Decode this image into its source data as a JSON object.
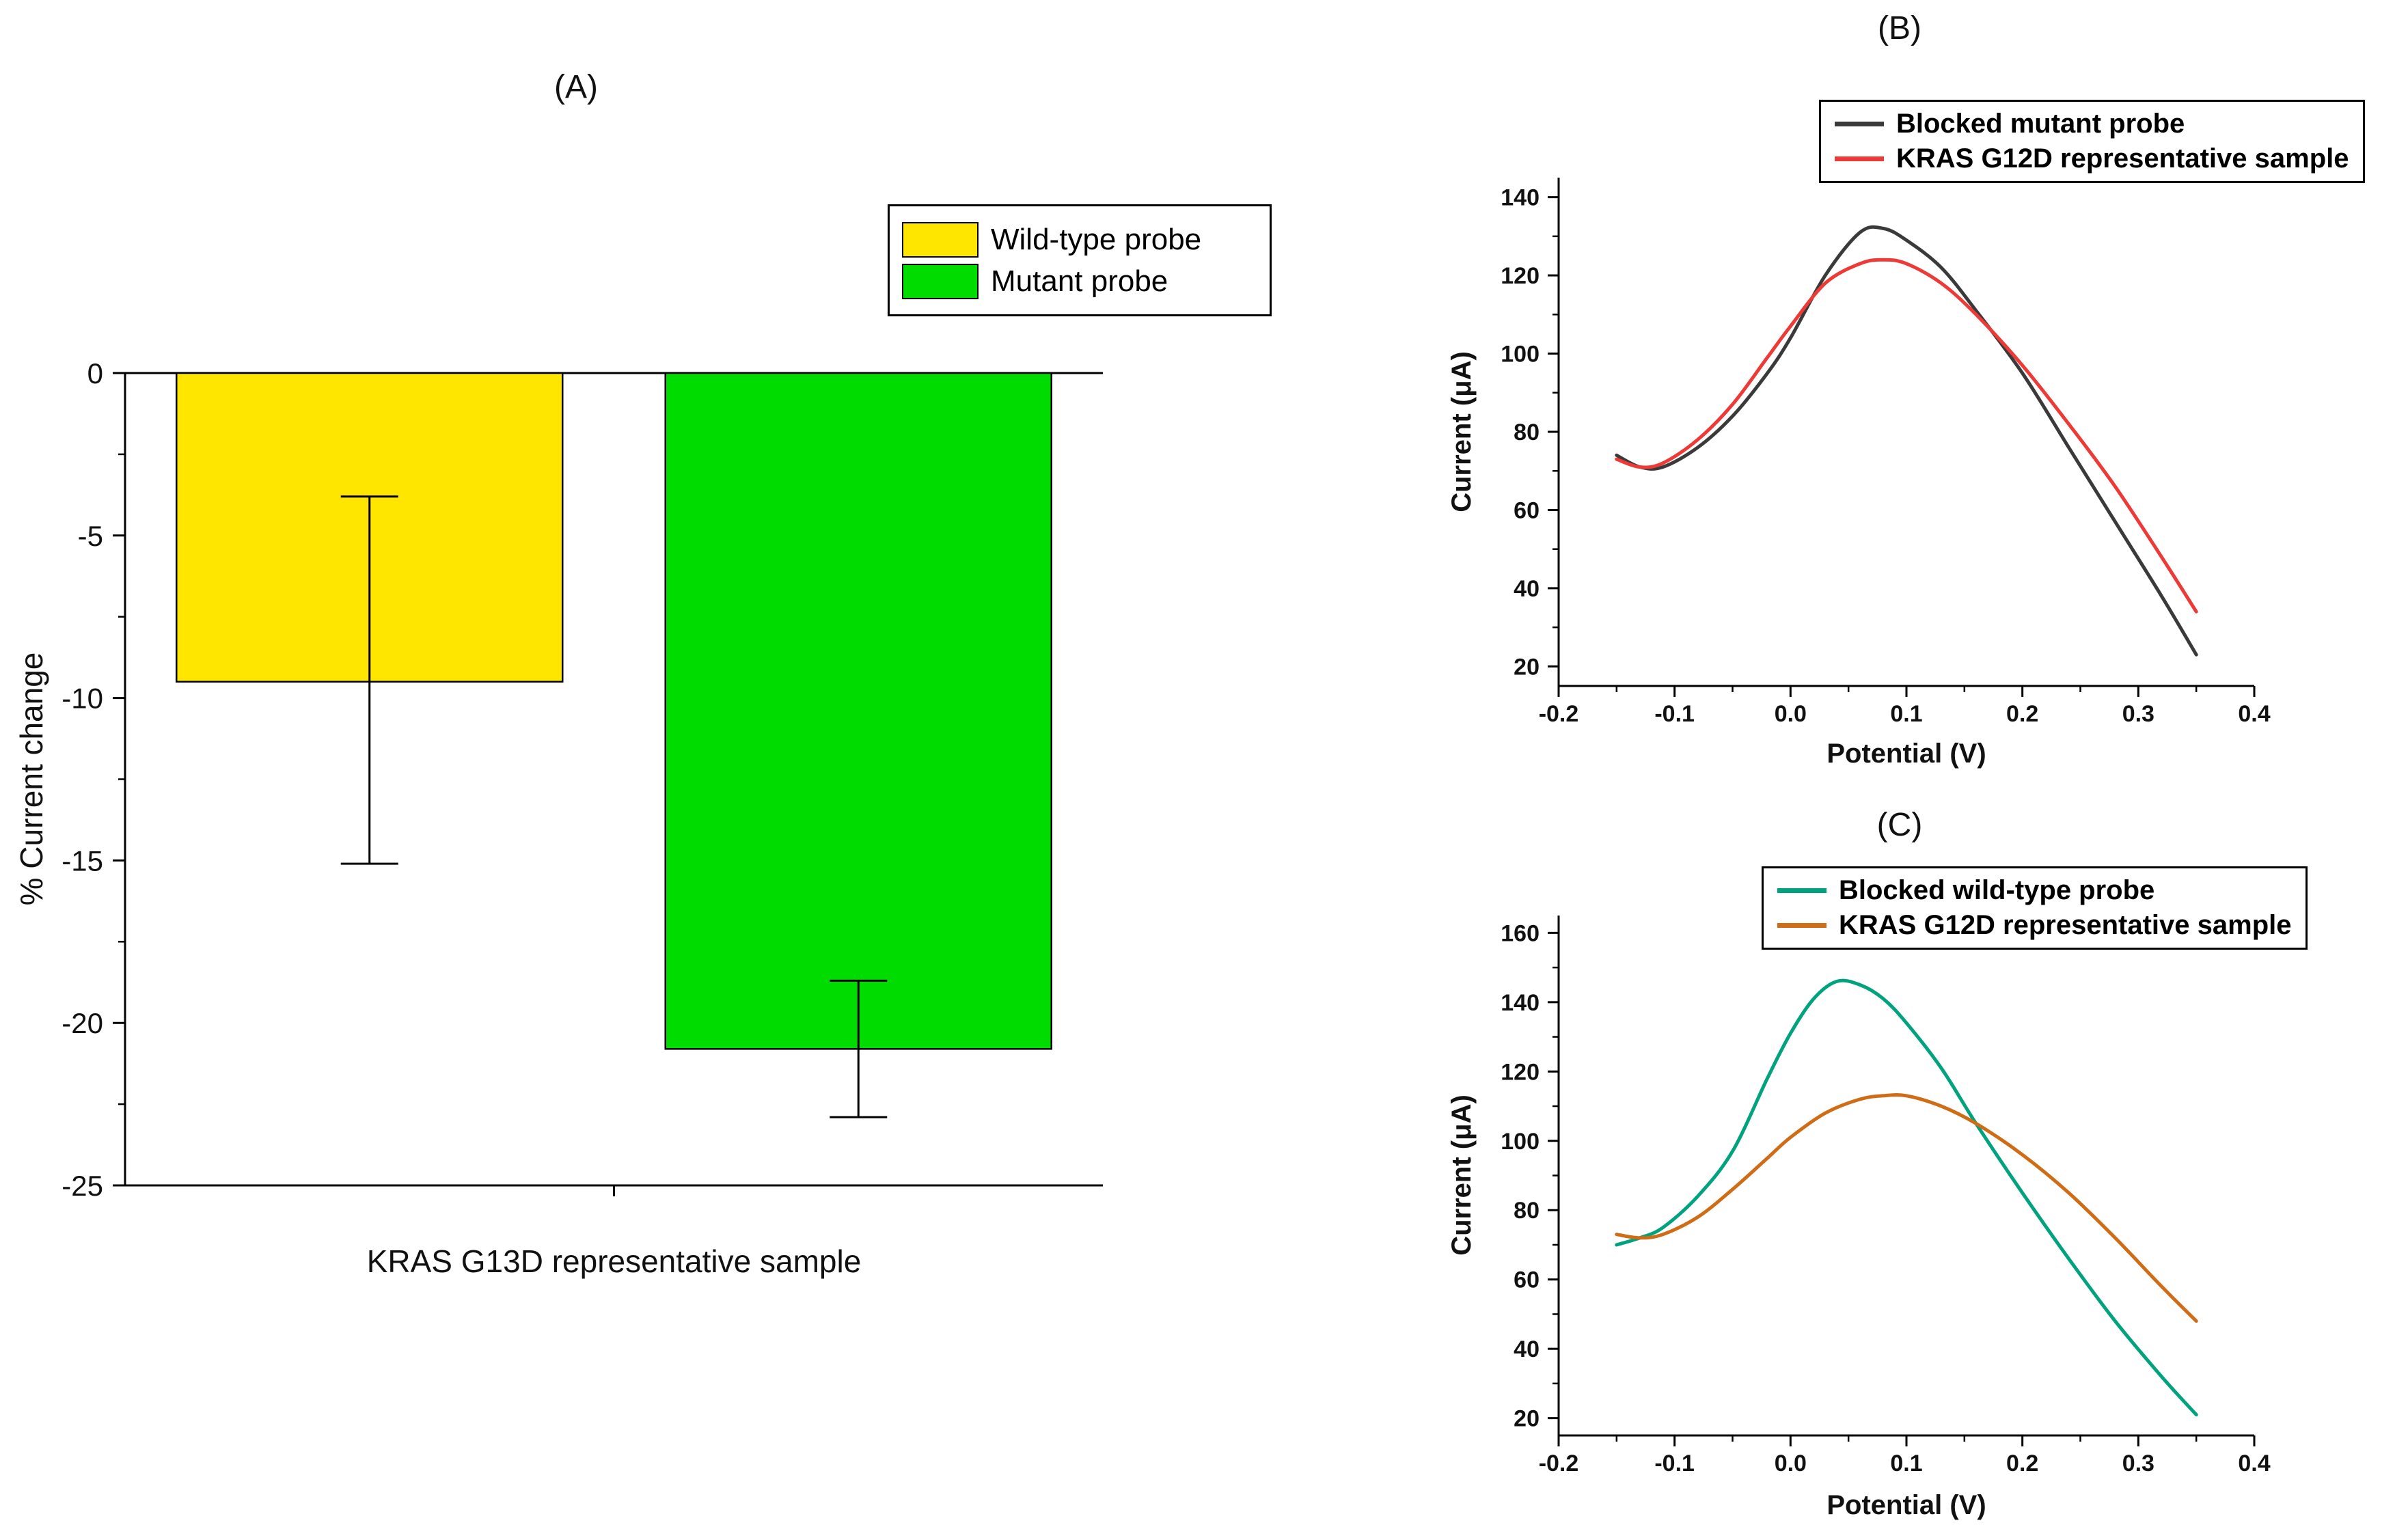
{
  "figure": {
    "background": "#ffffff"
  },
  "chart_data": [
    {
      "panel": "A",
      "type": "bar",
      "title": "(A)",
      "xlabel": "KRAS G13D representative sample",
      "ylabel": "% Current change",
      "ylim": [
        -25,
        0
      ],
      "yticks": [
        0,
        -5,
        -10,
        -15,
        -20,
        -25
      ],
      "y_minor_step": 2.5,
      "categories": [
        "Wild-type probe",
        "Mutant probe"
      ],
      "values": [
        -9.5,
        -20.8
      ],
      "error_ranges": [
        [
          -15.1,
          -3.8
        ],
        [
          -22.9,
          -18.7
        ]
      ],
      "colors": [
        "#ffe600",
        "#00dc00"
      ],
      "legend_position": "top-right",
      "grid": false
    },
    {
      "panel": "B",
      "type": "line",
      "title": "(B)",
      "xlabel": "Potential (V)",
      "ylabel": "Current (μA)",
      "xlim": [
        -0.2,
        0.4
      ],
      "ylim": [
        15,
        145
      ],
      "xtick_labels": [
        "-0.2",
        "-0.1",
        "0.0",
        "0.1",
        "0.2",
        "0.3",
        "0.4"
      ],
      "yticks": [
        20,
        40,
        60,
        80,
        100,
        120,
        140
      ],
      "legend_position": "top-right",
      "grid": false,
      "series": [
        {
          "name": "Blocked mutant probe",
          "color": "#3a3a3a",
          "x": [
            -0.15,
            -0.13,
            -0.11,
            -0.08,
            -0.05,
            -0.02,
            0.0,
            0.03,
            0.06,
            0.08,
            0.1,
            0.13,
            0.16,
            0.2,
            0.24,
            0.28,
            0.32,
            0.35
          ],
          "y": [
            74,
            71,
            71,
            76,
            84,
            95,
            104,
            120,
            131,
            132,
            129,
            122,
            111,
            95,
            76,
            57,
            38,
            23
          ]
        },
        {
          "name": "KRAS G12D representative sample",
          "color": "#ee3a36",
          "x": [
            -0.15,
            -0.13,
            -0.11,
            -0.08,
            -0.05,
            -0.02,
            0.0,
            0.03,
            0.06,
            0.08,
            0.1,
            0.13,
            0.16,
            0.2,
            0.24,
            0.28,
            0.32,
            0.35
          ],
          "y": [
            73,
            71,
            72,
            78,
            87,
            99,
            107,
            118,
            123,
            124,
            123,
            118,
            110,
            97,
            82,
            66,
            48,
            34
          ]
        }
      ]
    },
    {
      "panel": "C",
      "type": "line",
      "title": "(C)",
      "xlabel": "Potential (V)",
      "ylabel": "Current (μA)",
      "xlim": [
        -0.2,
        0.4
      ],
      "ylim": [
        15,
        165
      ],
      "xtick_labels": [
        "-0.2",
        "-0.1",
        "0.0",
        "0.1",
        "0.2",
        "0.3",
        "0.4"
      ],
      "yticks": [
        20,
        40,
        60,
        80,
        100,
        120,
        140,
        160
      ],
      "legend_position": "top-right",
      "grid": false,
      "series": [
        {
          "name": "Blocked wild-type probe",
          "color": "#00a37e",
          "x": [
            -0.15,
            -0.13,
            -0.11,
            -0.08,
            -0.05,
            -0.02,
            0.0,
            0.02,
            0.04,
            0.06,
            0.08,
            0.1,
            0.13,
            0.16,
            0.2,
            0.24,
            0.28,
            0.32,
            0.35
          ],
          "y": [
            70,
            72,
            75,
            84,
            97,
            118,
            131,
            141,
            146,
            145,
            141,
            134,
            121,
            105,
            85,
            66,
            48,
            32,
            21
          ]
        },
        {
          "name": "KRAS G12D representative sample",
          "color": "#cf6c15",
          "x": [
            -0.15,
            -0.13,
            -0.11,
            -0.08,
            -0.05,
            -0.02,
            0.0,
            0.03,
            0.06,
            0.08,
            0.1,
            0.13,
            0.16,
            0.2,
            0.24,
            0.28,
            0.32,
            0.35
          ],
          "y": [
            73,
            72,
            73,
            78,
            86,
            95,
            101,
            108,
            112,
            113,
            113,
            110,
            105,
            96,
            85,
            72,
            58,
            48
          ]
        }
      ]
    }
  ]
}
